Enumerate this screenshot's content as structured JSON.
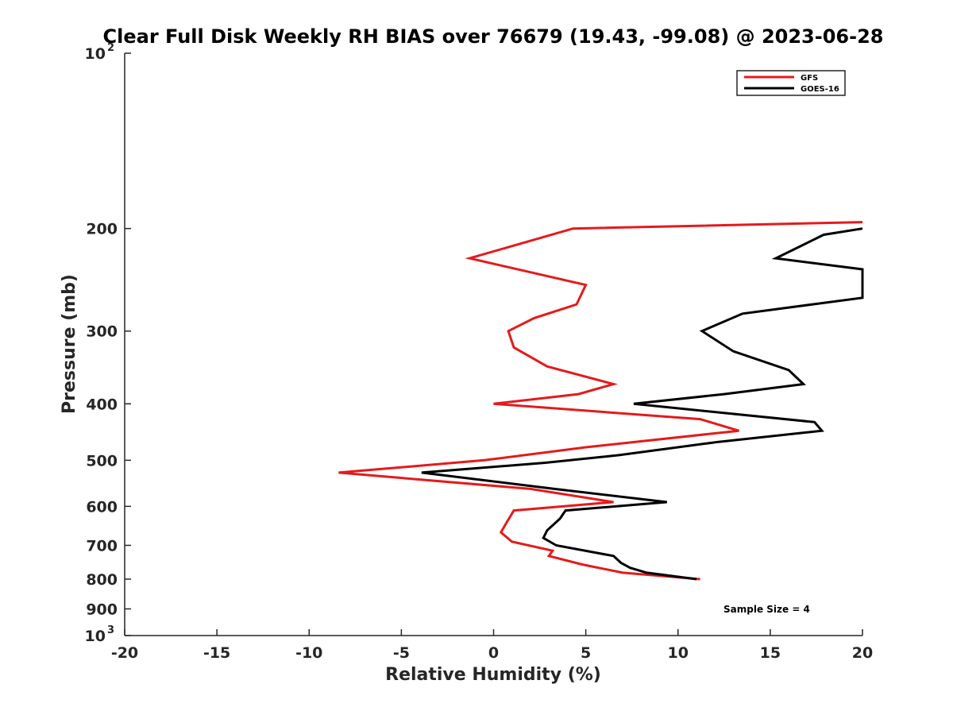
{
  "chart_data": {
    "type": "line",
    "title": "Clear Full Disk Weekly RH BIAS over 76679 (19.43, -99.08) @ 2023-06-28",
    "xlabel": "Relative Humidity (%)",
    "ylabel": "Pressure (mb)",
    "xlim": [
      -20,
      20
    ],
    "ylim": [
      100,
      1000
    ],
    "y_scale": "log",
    "y_reversed": true,
    "x_ticks": [
      "-20",
      "-15",
      "-10",
      "-5",
      "0",
      "5",
      "10",
      "15",
      "20"
    ],
    "y_ticks": [
      {
        "value": 100,
        "base": "10",
        "exp": "2"
      },
      {
        "value": 200,
        "label": "200"
      },
      {
        "value": 300,
        "label": "300"
      },
      {
        "value": 400,
        "label": "400"
      },
      {
        "value": 500,
        "label": "500"
      },
      {
        "value": 600,
        "label": "600"
      },
      {
        "value": 700,
        "label": "700"
      },
      {
        "value": 800,
        "label": "800"
      },
      {
        "value": 900,
        "label": "900"
      },
      {
        "value": 1000,
        "base": "10",
        "exp": "3"
      }
    ],
    "grid": false,
    "legend_position": "top-right",
    "annotation": "Sample Size = 4",
    "series": [
      {
        "name": "GFS",
        "color": "#e41a1c",
        "points": [
          [
            20.0,
            195
          ],
          [
            4.3,
            200
          ],
          [
            -1.3,
            225
          ],
          [
            5.0,
            250
          ],
          [
            4.5,
            270
          ],
          [
            2.2,
            285
          ],
          [
            0.8,
            300
          ],
          [
            1.1,
            320
          ],
          [
            2.9,
            345
          ],
          [
            6.5,
            370
          ],
          [
            4.6,
            385
          ],
          [
            0.0,
            400
          ],
          [
            11.2,
            425
          ],
          [
            13.3,
            445
          ],
          [
            5.0,
            475
          ],
          [
            -0.5,
            500
          ],
          [
            -8.4,
            525
          ],
          [
            2.0,
            560
          ],
          [
            6.5,
            590
          ],
          [
            1.1,
            610
          ],
          [
            0.7,
            640
          ],
          [
            0.4,
            665
          ],
          [
            1.0,
            690
          ],
          [
            3.2,
            715
          ],
          [
            3.0,
            730
          ],
          [
            4.8,
            755
          ],
          [
            7.0,
            780
          ],
          [
            11.2,
            800
          ]
        ]
      },
      {
        "name": "GOES-16",
        "color": "#000000",
        "points": [
          [
            20.0,
            200
          ],
          [
            17.9,
            205
          ],
          [
            15.3,
            225
          ],
          [
            20.0,
            235
          ],
          [
            20.0,
            263
          ],
          [
            13.5,
            280
          ],
          [
            11.3,
            300
          ],
          [
            13.0,
            325
          ],
          [
            16.0,
            350
          ],
          [
            16.8,
            370
          ],
          [
            12.5,
            385
          ],
          [
            7.6,
            400
          ],
          [
            17.4,
            430
          ],
          [
            17.8,
            445
          ],
          [
            12.2,
            465
          ],
          [
            6.8,
            490
          ],
          [
            2.8,
            505
          ],
          [
            -3.9,
            525
          ],
          [
            3.3,
            560
          ],
          [
            9.4,
            590
          ],
          [
            3.9,
            610
          ],
          [
            3.6,
            630
          ],
          [
            2.9,
            660
          ],
          [
            2.7,
            680
          ],
          [
            3.4,
            700
          ],
          [
            6.5,
            730
          ],
          [
            6.9,
            750
          ],
          [
            7.4,
            765
          ],
          [
            8.3,
            780
          ],
          [
            11.0,
            800
          ]
        ]
      }
    ]
  }
}
